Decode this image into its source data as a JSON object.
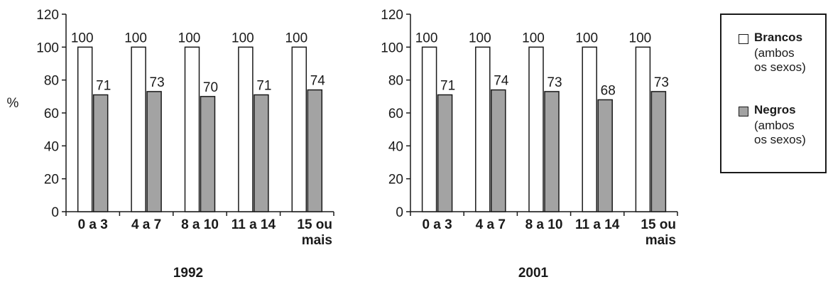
{
  "chart_data": [
    {
      "type": "bar",
      "title": "1992",
      "ylabel": "%",
      "ylim": [
        0,
        120
      ],
      "yticks": [
        "0",
        "20",
        "40",
        "60",
        "80",
        "100",
        "120"
      ],
      "categories": [
        [
          "0 a 3"
        ],
        [
          "4 a 7"
        ],
        [
          "8 a 10"
        ],
        [
          "11 a 14"
        ],
        [
          "15 ou",
          "mais"
        ]
      ],
      "series": [
        {
          "name": "Brancos",
          "values": [
            100,
            100,
            100,
            100,
            100
          ]
        },
        {
          "name": "Negros",
          "values": [
            71,
            73,
            70,
            71,
            74
          ]
        }
      ]
    },
    {
      "type": "bar",
      "title": "2001",
      "ylabel": "",
      "ylim": [
        0,
        120
      ],
      "yticks": [
        "0",
        "20",
        "40",
        "60",
        "80",
        "100",
        "120"
      ],
      "categories": [
        [
          "0 a 3"
        ],
        [
          "4 a 7"
        ],
        [
          "8 a 10"
        ],
        [
          "11 a 14"
        ],
        [
          "15 ou",
          "mais"
        ]
      ],
      "series": [
        {
          "name": "Brancos",
          "values": [
            100,
            100,
            100,
            100,
            100
          ]
        },
        {
          "name": "Negros",
          "values": [
            71,
            74,
            73,
            68,
            73
          ]
        }
      ]
    }
  ],
  "legend": {
    "placement": "right",
    "entries": [
      {
        "name": "Brancos",
        "desc1": "(ambos",
        "desc2": "os sexos)",
        "color": "#ffffff"
      },
      {
        "name": "Negros",
        "desc1": "(ambos",
        "desc2": "os sexos)",
        "color": "#a3a3a3"
      }
    ]
  },
  "colors": {
    "brancos": "#ffffff",
    "negros": "#a3a3a3",
    "stroke": "#1a1a1a"
  }
}
